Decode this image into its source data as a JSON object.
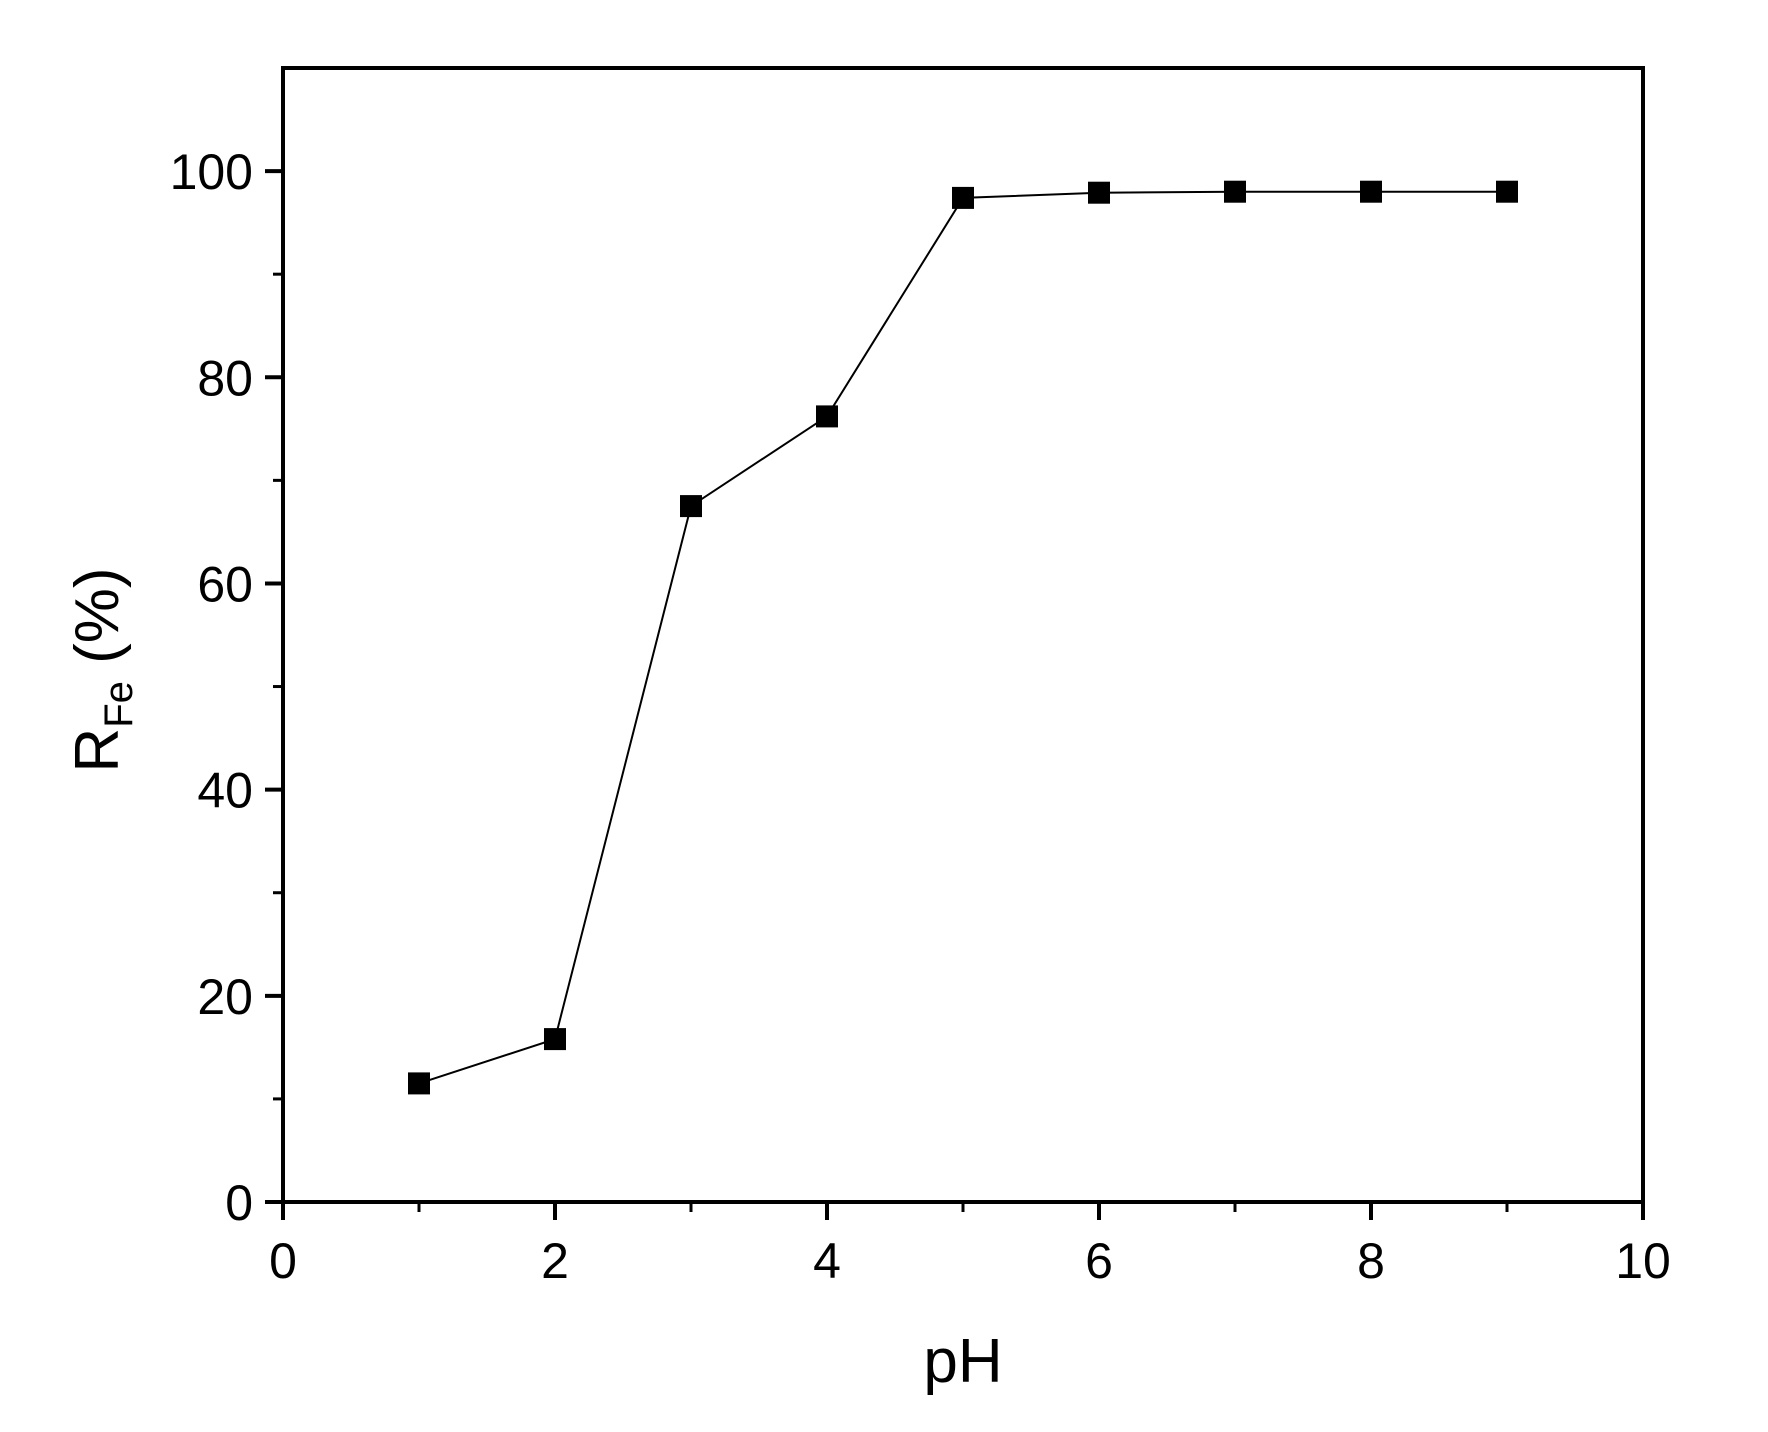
{
  "chart_data": {
    "type": "line",
    "xlabel": "pH",
    "ylabel": {
      "main": "R",
      "subscript": "Fe",
      "suffix": " (%)"
    },
    "xlim": [
      0,
      10
    ],
    "ylim": [
      0,
      110
    ],
    "x_ticks": [
      0,
      2,
      4,
      6,
      8,
      10
    ],
    "x_tick_labels": [
      "0",
      "2",
      "4",
      "6",
      "8",
      "10"
    ],
    "y_ticks": [
      0,
      20,
      40,
      60,
      80,
      100
    ],
    "y_tick_labels": [
      "0",
      "20",
      "40",
      "60",
      "80",
      "100"
    ],
    "x_minor_ticks": [
      1,
      3,
      5,
      7,
      9
    ],
    "y_minor_ticks": [
      10,
      30,
      50,
      70,
      90
    ],
    "grid": false,
    "legend": "none",
    "series": [
      {
        "marker": "square",
        "color": "#000000",
        "x": [
          1,
          2,
          3,
          4,
          5,
          6,
          7,
          8,
          9
        ],
        "y": [
          11.5,
          15.8,
          67.5,
          76.2,
          97.4,
          97.9,
          98.0,
          98.0,
          98.0
        ]
      }
    ]
  }
}
